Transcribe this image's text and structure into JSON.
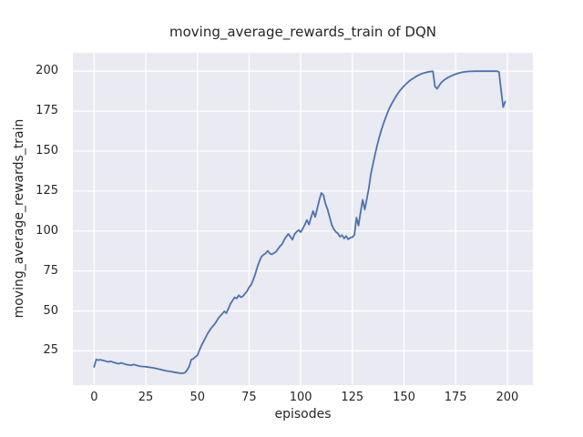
{
  "chart_data": {
    "type": "line",
    "title": "moving_average_rewards_train of DQN",
    "xlabel": "episodes",
    "ylabel": "moving_average_rewards_train",
    "xlim": [
      -10.3,
      212.4
    ],
    "ylim": [
      3.6,
      211.5
    ],
    "xticks": [
      0,
      25,
      50,
      75,
      100,
      125,
      150,
      175,
      200
    ],
    "yticks": [
      25,
      50,
      75,
      100,
      125,
      150,
      175,
      200
    ],
    "grid": true,
    "legend": "none",
    "colors": {
      "line": "#4C72B0",
      "plot_bg": "#EAEAF2",
      "grid": "#FFFFFF",
      "text": "#262626"
    },
    "series_name": "moving_average_rewards_train",
    "x": [
      0,
      1,
      2,
      3,
      4,
      5,
      6,
      7,
      8,
      9,
      10,
      11,
      12,
      13,
      14,
      15,
      16,
      17,
      18,
      19,
      20,
      21,
      22,
      23,
      24,
      25,
      26,
      27,
      28,
      29,
      30,
      31,
      32,
      33,
      34,
      35,
      36,
      37,
      38,
      39,
      40,
      41,
      42,
      43,
      44,
      45,
      46,
      47,
      48,
      49,
      50,
      51,
      52,
      53,
      54,
      55,
      56,
      57,
      58,
      59,
      60,
      61,
      62,
      63,
      64,
      65,
      66,
      67,
      68,
      69,
      70,
      71,
      72,
      73,
      74,
      75,
      76,
      77,
      78,
      79,
      80,
      81,
      82,
      83,
      84,
      85,
      86,
      87,
      88,
      89,
      90,
      91,
      92,
      93,
      94,
      95,
      96,
      97,
      98,
      99,
      100,
      101,
      102,
      103,
      104,
      105,
      106,
      107,
      108,
      109,
      110,
      111,
      112,
      113,
      114,
      115,
      116,
      117,
      118,
      119,
      120,
      121,
      122,
      123,
      124,
      125,
      126,
      127,
      128,
      129,
      130,
      131,
      132,
      133,
      134,
      135,
      136,
      137,
      138,
      139,
      140,
      141,
      142,
      143,
      144,
      145,
      146,
      147,
      148,
      149,
      150,
      151,
      152,
      153,
      154,
      155,
      156,
      157,
      158,
      159,
      160,
      161,
      162,
      163,
      164,
      165,
      166,
      167,
      168,
      169,
      170,
      171,
      172,
      173,
      174,
      175,
      176,
      177,
      178,
      179,
      180,
      181,
      182,
      183,
      184,
      185,
      186,
      187,
      188,
      189,
      190,
      191,
      192,
      193,
      194,
      195,
      196,
      197,
      198,
      199
    ],
    "y": [
      15.0,
      19.6,
      19.2,
      19.5,
      19.1,
      18.8,
      18.4,
      18.1,
      18.5,
      18.0,
      17.6,
      17.2,
      17.0,
      17.5,
      17.1,
      16.7,
      16.3,
      16.2,
      16.0,
      16.5,
      16.2,
      15.8,
      15.5,
      15.3,
      15.2,
      15.1,
      14.9,
      14.7,
      14.5,
      14.3,
      14.0,
      13.7,
      13.4,
      13.1,
      12.8,
      12.5,
      12.3,
      12.1,
      11.9,
      11.6,
      11.4,
      11.2,
      11.0,
      11.0,
      11.4,
      13.0,
      15.2,
      19.5,
      20.1,
      21.3,
      22.3,
      25.5,
      28.5,
      31.0,
      33.5,
      36.0,
      38.0,
      39.8,
      41.2,
      43.0,
      45.2,
      46.8,
      48.2,
      49.8,
      48.6,
      51.5,
      54.5,
      56.5,
      58.5,
      57.8,
      59.8,
      58.6,
      59.2,
      60.8,
      62.3,
      64.8,
      66.4,
      69.5,
      73.0,
      77.5,
      81.0,
      84.0,
      85.2,
      86.0,
      87.6,
      86.0,
      85.4,
      86.2,
      87.0,
      88.8,
      90.5,
      91.8,
      94.5,
      96.5,
      98.2,
      96.4,
      94.6,
      98.0,
      99.5,
      100.6,
      99.3,
      101.5,
      104.0,
      106.9,
      104.0,
      108.5,
      112.5,
      108.8,
      114.0,
      119.5,
      123.8,
      122.5,
      117.0,
      113.5,
      108.8,
      104.0,
      101.2,
      99.5,
      98.5,
      96.4,
      97.4,
      95.4,
      96.8,
      94.8,
      95.8,
      96.2,
      97.5,
      108.4,
      103.4,
      112.0,
      119.5,
      113.5,
      120.0,
      127.0,
      136.0,
      142.0,
      148.0,
      153.5,
      158.5,
      163.0,
      167.0,
      170.5,
      174.0,
      177.0,
      179.5,
      181.8,
      184.0,
      186.0,
      187.8,
      189.3,
      190.7,
      192.0,
      193.2,
      194.3,
      195.2,
      196.0,
      196.8,
      197.5,
      198.1,
      198.6,
      199.0,
      199.3,
      199.6,
      199.8,
      199.9,
      190.5,
      189.0,
      191.0,
      192.8,
      194.0,
      195.0,
      195.8,
      196.5,
      197.1,
      197.7,
      198.2,
      198.6,
      199.0,
      199.3,
      199.5,
      199.7,
      199.8,
      199.9,
      199.9,
      200.0,
      200.0,
      200.0,
      200.0,
      200.0,
      200.0,
      200.0,
      200.0,
      200.0,
      200.0,
      200.0,
      200.0,
      199.5,
      188.0,
      177.5,
      181.0
    ]
  }
}
